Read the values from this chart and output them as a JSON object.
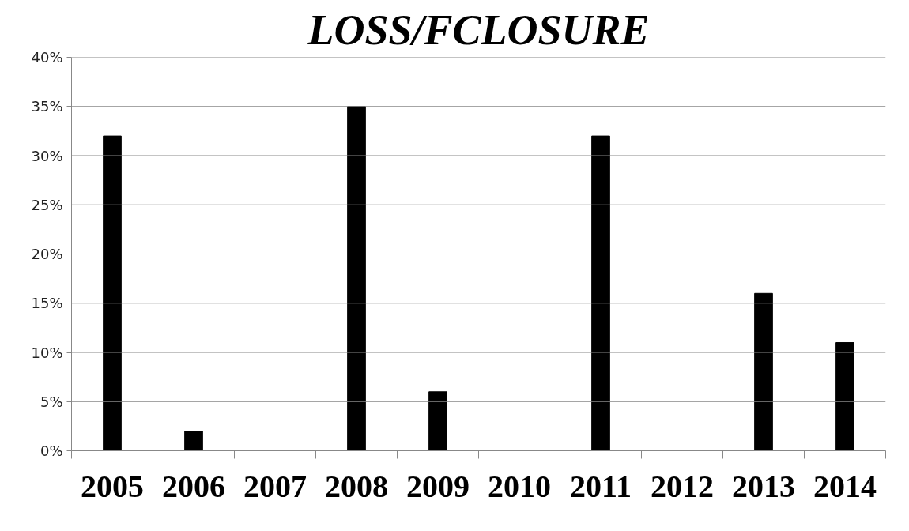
{
  "chart_data": {
    "type": "bar",
    "title": "LOSS/FCLOSURE",
    "categories": [
      "2005",
      "2006",
      "2007",
      "2008",
      "2009",
      "2010",
      "2011",
      "2012",
      "2013",
      "2014"
    ],
    "values": [
      32,
      2,
      0,
      35,
      6,
      0,
      32,
      0,
      16,
      11
    ],
    "color": "#000000",
    "ylim": [
      0,
      40
    ],
    "yticks": [
      {
        "value": 0,
        "label": "0%"
      },
      {
        "value": 5,
        "label": "5%"
      },
      {
        "value": 10,
        "label": "10%"
      },
      {
        "value": 15,
        "label": "15%"
      },
      {
        "value": 20,
        "label": "20%"
      },
      {
        "value": 25,
        "label": "25%"
      },
      {
        "value": 30,
        "label": "30%"
      },
      {
        "value": 35,
        "label": "35%"
      },
      {
        "value": 40,
        "label": "40%"
      }
    ],
    "grid": "y"
  }
}
